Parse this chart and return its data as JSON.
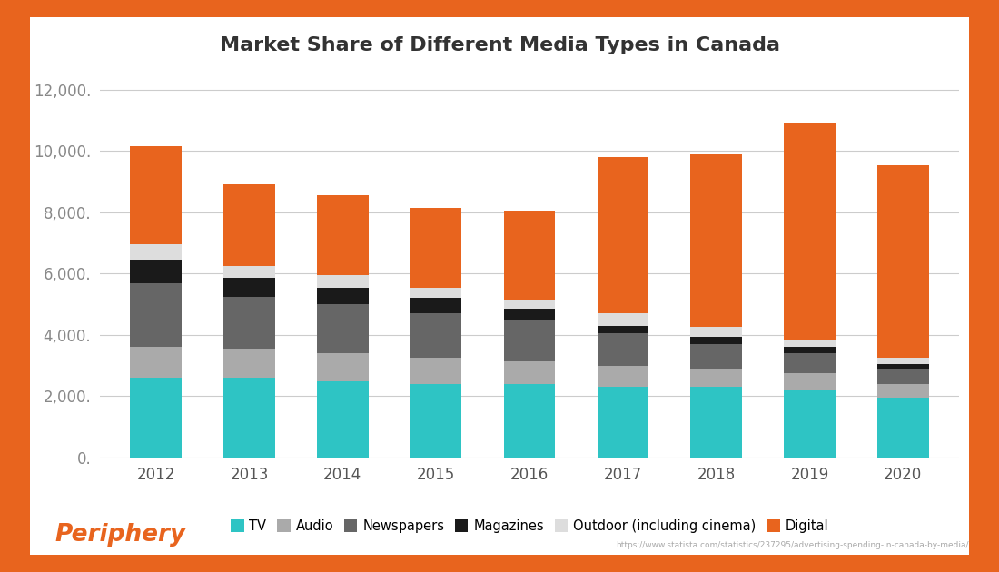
{
  "years": [
    "2012",
    "2013",
    "2014",
    "2015",
    "2016",
    "2017",
    "2018",
    "2019",
    "2020"
  ],
  "tv": [
    2600,
    2600,
    2500,
    2400,
    2400,
    2300,
    2300,
    2200,
    1950
  ],
  "audio": [
    1000,
    950,
    900,
    850,
    750,
    700,
    600,
    550,
    450
  ],
  "newspapers": [
    2100,
    1700,
    1600,
    1450,
    1350,
    1050,
    800,
    650,
    500
  ],
  "magazines": [
    750,
    600,
    550,
    500,
    350,
    250,
    250,
    200,
    150
  ],
  "outdoor": [
    500,
    400,
    400,
    350,
    300,
    400,
    300,
    250,
    200
  ],
  "digital": [
    3200,
    2650,
    2600,
    2600,
    2900,
    5100,
    5650,
    7050,
    6300
  ],
  "colors": {
    "tv": "#2EC4C4",
    "audio": "#AAAAAA",
    "newspapers": "#666666",
    "magazines": "#1A1A1A",
    "outdoor": "#DDDDDD",
    "digital": "#E8641E"
  },
  "labels": {
    "tv": "TV",
    "audio": "Audio",
    "newspapers": "Newspapers",
    "magazines": "Magazines",
    "outdoor": "Outdoor (including cinema)",
    "digital": "Digital"
  },
  "title": "Market Share of Different Media Types in Canada",
  "ylim": [
    0,
    12500
  ],
  "yticks": [
    0,
    2000,
    4000,
    6000,
    8000,
    10000,
    12000
  ],
  "bg_color": "#FFFFFF",
  "frame_color": "#E8641E",
  "footer_text": "Periphery",
  "footer_color": "#E8641E",
  "source_text": "https://www.statista.com/statistics/237295/advertising-spending-in-canada-by-media/",
  "title_fontsize": 16,
  "bar_width": 0.55
}
